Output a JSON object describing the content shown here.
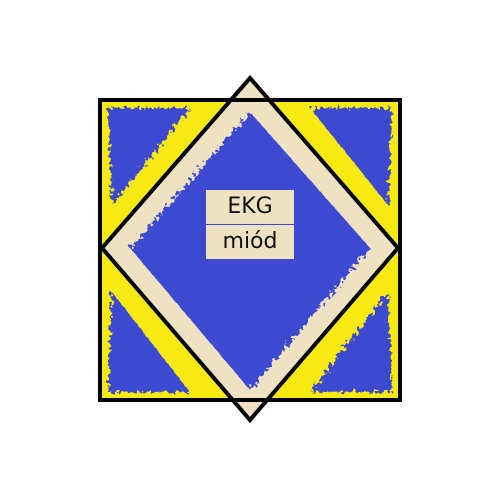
{
  "puzzle": {
    "labels": [
      "EKG",
      "miód"
    ],
    "colors": {
      "fill_blue": "#3d4ad0",
      "fill_yellow": "#f7ea12",
      "fill_beige": "#efe2c2",
      "outline": "#000000",
      "background": "#ffffff"
    }
  }
}
